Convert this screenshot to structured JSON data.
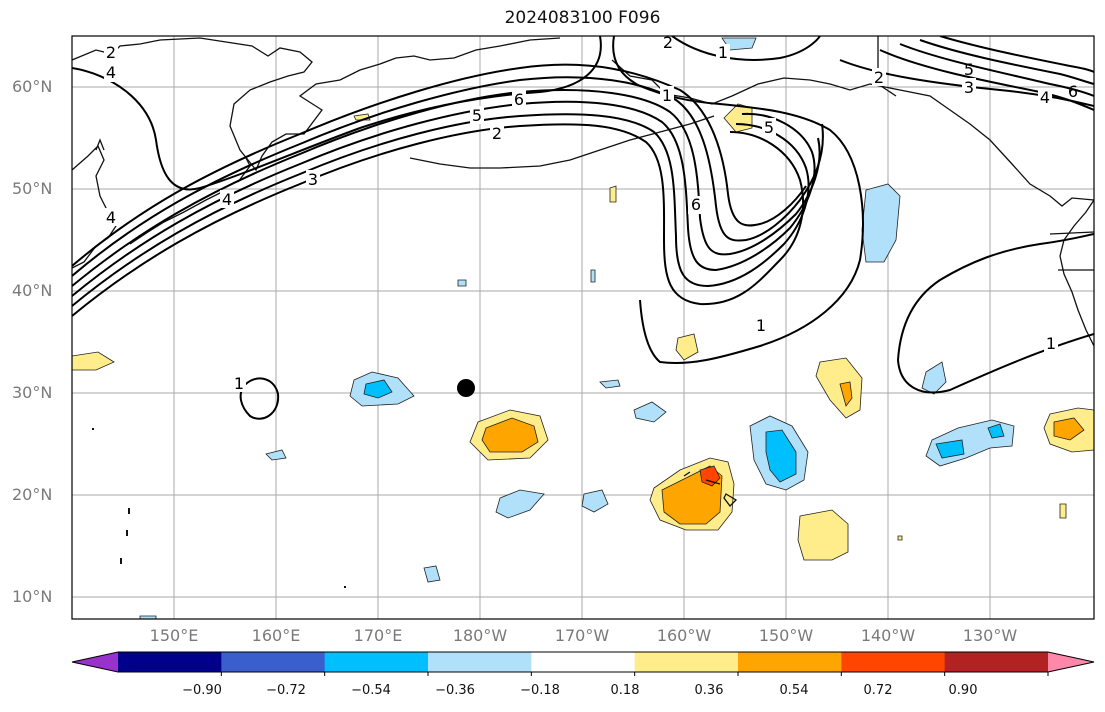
{
  "title": "2024083100 F096",
  "latitude_labels": [
    "60°N",
    "50°N",
    "40°N",
    "30°N",
    "20°N",
    "10°N"
  ],
  "longitude_labels": [
    "150°E",
    "160°E",
    "170°E",
    "180°W",
    "170°W",
    "160°W",
    "150°W",
    "140°W",
    "130°W"
  ],
  "contour_labels": [
    "2",
    "4",
    "1",
    "3",
    "2",
    "5",
    "4",
    "6",
    "1",
    "6",
    "5",
    "2",
    "3",
    "4",
    "4",
    "1",
    "2",
    "5",
    "6",
    "3",
    "4",
    "6",
    "2",
    "3",
    "1",
    "1"
  ],
  "colorbar": {
    "ticks": [
      "−0.90",
      "−0.72",
      "−0.54",
      "−0.36",
      "−0.18",
      "0.18",
      "0.36",
      "0.54",
      "0.72",
      "0.90"
    ],
    "colors": [
      "#9932cc",
      "#00008b",
      "#3a5fcd",
      "#00bfff",
      "#b0e0fa",
      "#ffffff",
      "#ffec8b",
      "#ffa500",
      "#ff4500",
      "#b22222",
      "#ff88aa"
    ]
  },
  "colors": {
    "land": "#111111",
    "grid": "#aaaaaa",
    "pos_light": "#ffec8b",
    "pos_mid": "#ffa500",
    "neg_light": "#b0e0fa",
    "neg_mid": "#00bfff",
    "marker": "#000000"
  }
}
